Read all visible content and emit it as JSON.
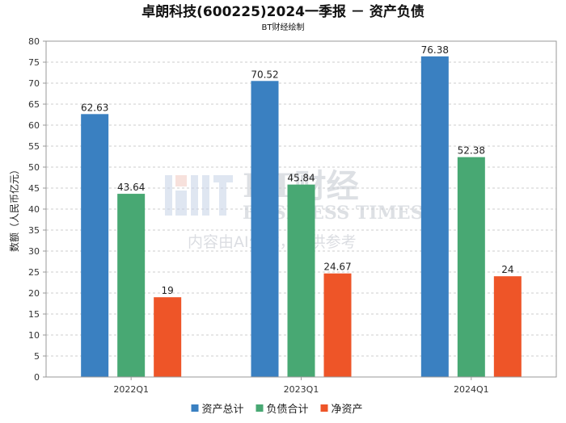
{
  "chart_data": {
    "type": "bar",
    "title": "卓朗科技(600225)2024一季报 － 资产负债",
    "subtitle": "BT财经绘制",
    "ylabel": "数额（人民币亿元）",
    "xlabel": "",
    "ylim": [
      0,
      80
    ],
    "ytick_step": 5,
    "grid": true,
    "legend_position": "bottom",
    "categories": [
      "2022Q1",
      "2023Q1",
      "2024Q1"
    ],
    "series": [
      {
        "name": "资产总计",
        "color": "#3a80c1",
        "values": [
          62.63,
          70.52,
          76.38
        ]
      },
      {
        "name": "负债合计",
        "color": "#48a873",
        "values": [
          43.64,
          45.84,
          52.38
        ]
      },
      {
        "name": "净资产",
        "color": "#ee5528",
        "values": [
          19,
          24.67,
          24
        ]
      }
    ]
  },
  "watermark": {
    "brand": "BT财经",
    "brand_en": "BUSINESS TIMES",
    "notice": "内容由AI生成，仅供参考"
  }
}
